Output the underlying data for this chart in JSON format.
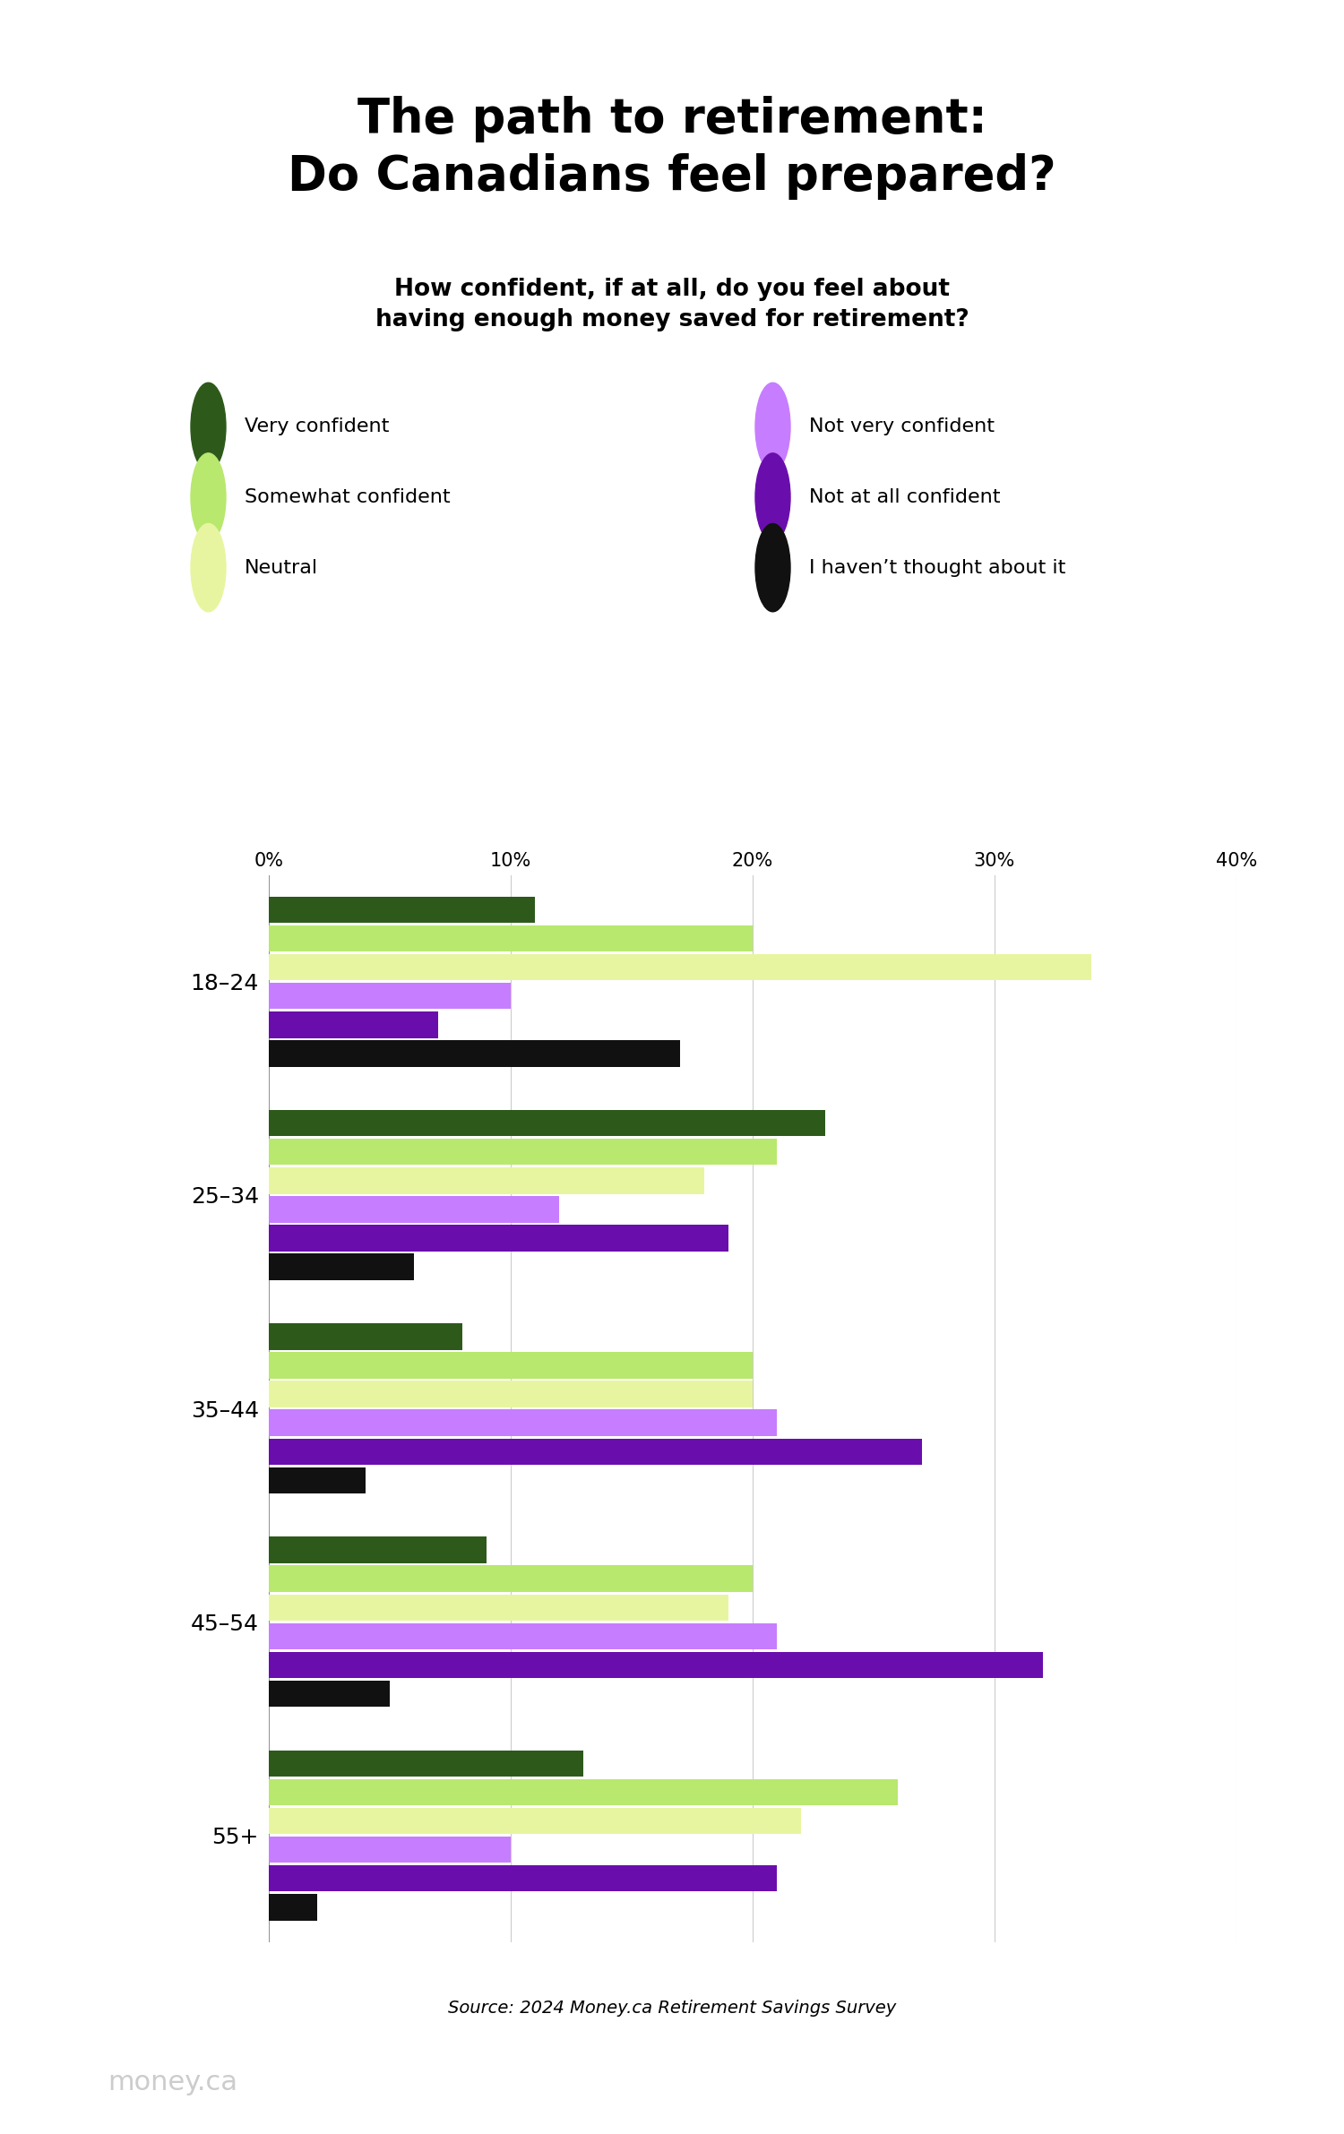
{
  "title": "The path to retirement:\nDo Canadians feel prepared?",
  "subtitle": "How confident, if at all, do you feel about\nhaving enough money saved for retirement?",
  "source": "Source: 2024 Money.ca Retirement Savings Survey",
  "watermark": "money.ca",
  "age_groups": [
    "18–24",
    "25–34",
    "35–44",
    "45–54",
    "55+"
  ],
  "categories": [
    "Very confident",
    "Somewhat confident",
    "Neutral",
    "Not very confident",
    "Not at all confident",
    "I haven’t thought about it"
  ],
  "colors": [
    "#2d5a1b",
    "#b8e86e",
    "#e8f5a0",
    "#c77dff",
    "#6a0dad",
    "#111111"
  ],
  "data": {
    "18–24": [
      11,
      20,
      34,
      10,
      7,
      17
    ],
    "25–34": [
      23,
      21,
      18,
      12,
      19,
      6
    ],
    "35–44": [
      8,
      20,
      20,
      21,
      27,
      4
    ],
    "45–54": [
      9,
      20,
      19,
      21,
      32,
      5
    ],
    "55+": [
      13,
      26,
      22,
      10,
      21,
      2
    ]
  },
  "xlim": [
    0,
    40
  ],
  "xticks": [
    0,
    10,
    20,
    30,
    40
  ],
  "xtick_labels": [
    "0%",
    "10%",
    "20%",
    "30%",
    "40%"
  ],
  "background_color": "#ffffff",
  "title_fontsize": 38,
  "subtitle_fontsize": 19,
  "legend_fontsize": 16,
  "axis_fontsize": 15,
  "ylabel_fontsize": 18,
  "source_fontsize": 14,
  "watermark_fontsize": 22
}
